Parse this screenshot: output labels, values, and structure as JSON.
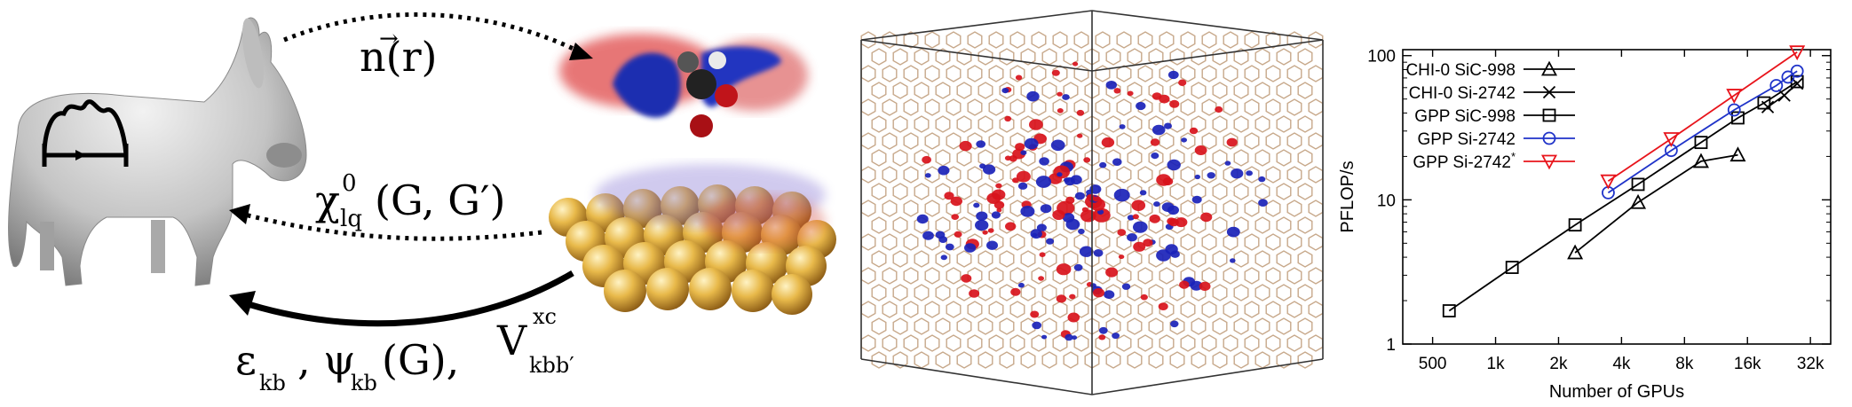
{
  "labels": {
    "density": "n(r)",
    "chi_main": "χ",
    "chi_sup": "0",
    "chi_sub": "lq",
    "chi_args": "(G, G′)",
    "bottom_eps": "ε",
    "bottom_eps_sub": "kb",
    "bottom_psi": ", ψ",
    "bottom_psi_sub": "kb",
    "bottom_psi_arg": "(G),",
    "bottom_v": "V",
    "bottom_v_sup": "xc",
    "bottom_v_sub": "kbb′"
  },
  "colors": {
    "red_series": "#e8141b",
    "blue_series": "#1f33c9",
    "black_series": "#000000",
    "isosurface_red": "#d8121b",
    "isosurface_blue": "#1a22b8",
    "lattice": "#c7a88a",
    "gold": "#e3b042"
  },
  "chart_data": {
    "type": "line",
    "xlabel": "Number of GPUs",
    "ylabel": "PFLOP/s",
    "xscale": "log2",
    "yscale": "log10",
    "xlim": [
      360,
      40000
    ],
    "ylim": [
      1,
      110
    ],
    "xticks": [
      {
        "value": 500,
        "label": "500"
      },
      {
        "value": 1000,
        "label": "1k"
      },
      {
        "value": 2000,
        "label": "2k"
      },
      {
        "value": 4000,
        "label": "4k"
      },
      {
        "value": 8000,
        "label": "8k"
      },
      {
        "value": 16000,
        "label": "16k"
      },
      {
        "value": 32000,
        "label": "32k"
      }
    ],
    "yticks": [
      {
        "value": 1,
        "label": "1"
      },
      {
        "value": 10,
        "label": "10"
      },
      {
        "value": 100,
        "label": "100"
      }
    ],
    "legend_position": "top-left",
    "series": [
      {
        "name": "CHI-0 SiC-998",
        "marker": "triangle",
        "color": "#000000",
        "x": [
          2400,
          4800,
          9600,
          14400
        ],
        "y": [
          4.3,
          9.6,
          18.5,
          20.5
        ]
      },
      {
        "name": "CHI-0 Si-2742",
        "marker": "x",
        "color": "#000000",
        "x": [
          20000,
          24000,
          27648
        ],
        "y": [
          44,
          53,
          64
        ]
      },
      {
        "name": "GPP SiC-998",
        "marker": "square",
        "color": "#000000",
        "x": [
          600,
          1200,
          2400,
          4800,
          9600,
          14400,
          19200,
          27648
        ],
        "y": [
          1.7,
          3.4,
          6.7,
          12.8,
          25,
          37,
          47,
          66
        ]
      },
      {
        "name": "GPP Si-2742",
        "marker": "circle",
        "color": "#1f33c9",
        "x": [
          3456,
          6912,
          13824,
          22000,
          25000,
          27648
        ],
        "y": [
          11.2,
          22,
          42,
          62,
          71,
          78
        ]
      },
      {
        "name": "GPP Si-2742*",
        "legend_name": "GPP Si-2742",
        "legend_sup": "*",
        "marker": "triangle-down",
        "color": "#e8141b",
        "x": [
          3456,
          6912,
          13824,
          27648
        ],
        "y": [
          13.5,
          26.5,
          53,
          105.9
        ]
      }
    ]
  }
}
